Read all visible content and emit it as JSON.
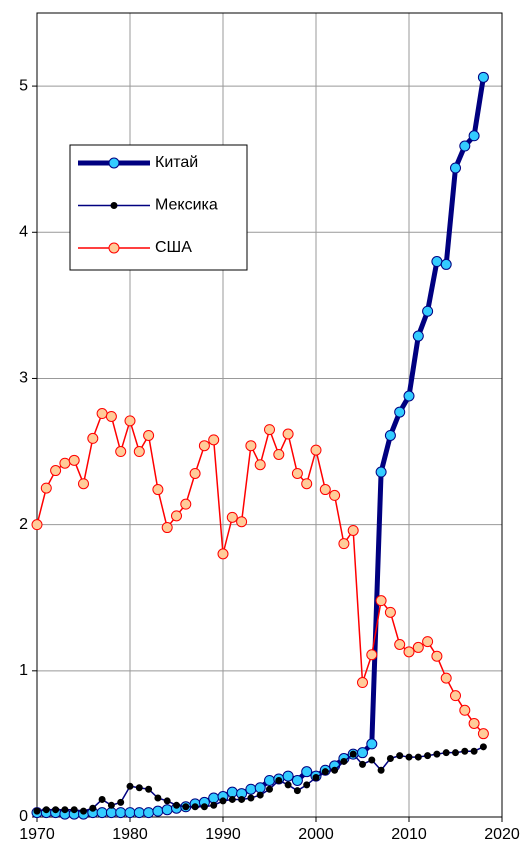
{
  "chart_data": {
    "type": "line",
    "x": [
      1970,
      1971,
      1972,
      1973,
      1974,
      1975,
      1976,
      1977,
      1978,
      1979,
      1980,
      1981,
      1982,
      1983,
      1984,
      1985,
      1986,
      1987,
      1988,
      1989,
      1990,
      1991,
      1992,
      1993,
      1994,
      1995,
      1996,
      1997,
      1998,
      1999,
      2000,
      2001,
      2002,
      2003,
      2004,
      2005,
      2006,
      2007,
      2008,
      2009,
      2010,
      2011,
      2012,
      2013,
      2014,
      2015,
      2016,
      2017,
      2018
    ],
    "series": [
      {
        "name": "Китай",
        "color": "#000080",
        "marker_color": "#33ccff",
        "line_width": 5,
        "marker_size": 5,
        "values": [
          0.03,
          0.03,
          0.03,
          0.02,
          0.02,
          0.02,
          0.03,
          0.03,
          0.03,
          0.03,
          0.03,
          0.03,
          0.03,
          0.04,
          0.05,
          0.06,
          0.07,
          0.09,
          0.1,
          0.13,
          0.14,
          0.17,
          0.16,
          0.19,
          0.2,
          0.25,
          0.26,
          0.28,
          0.25,
          0.31,
          0.28,
          0.32,
          0.35,
          0.4,
          0.43,
          0.44,
          0.5,
          2.36,
          2.61,
          2.77,
          2.88,
          3.29,
          3.46,
          3.8,
          3.78,
          4.44,
          4.59,
          4.66,
          5.06
        ]
      },
      {
        "name": "Мексика",
        "color": "#000080",
        "marker_color": "#000000",
        "line_width": 1.5,
        "marker_size": 3,
        "values": [
          0.04,
          0.05,
          0.05,
          0.05,
          0.05,
          0.04,
          0.06,
          0.12,
          0.08,
          0.1,
          0.21,
          0.2,
          0.19,
          0.13,
          0.11,
          0.08,
          0.07,
          0.07,
          0.07,
          0.08,
          0.11,
          0.12,
          0.12,
          0.13,
          0.15,
          0.19,
          0.25,
          0.22,
          0.18,
          0.22,
          0.27,
          0.31,
          0.32,
          0.38,
          0.43,
          0.36,
          0.39,
          0.32,
          0.4,
          0.42,
          0.41,
          0.41,
          0.42,
          0.43,
          0.44,
          0.44,
          0.45,
          0.45,
          0.48
        ]
      },
      {
        "name": "США",
        "color": "#ff0000",
        "marker_color": "#ffcc99",
        "line_width": 1.5,
        "marker_size": 5,
        "values": [
          2.0,
          2.25,
          2.37,
          2.42,
          2.44,
          2.28,
          2.59,
          2.76,
          2.74,
          2.5,
          2.71,
          2.5,
          2.61,
          2.24,
          1.98,
          2.06,
          2.14,
          2.35,
          2.54,
          2.58,
          1.8,
          2.05,
          2.02,
          2.54,
          2.41,
          2.65,
          2.48,
          2.62,
          2.35,
          2.28,
          2.51,
          2.24,
          2.2,
          1.87,
          1.96,
          0.92,
          1.11,
          1.48,
          1.4,
          1.18,
          1.13,
          1.16,
          1.2,
          1.1,
          0.95,
          0.83,
          0.73,
          0.64,
          0.57
        ]
      }
    ],
    "xlim": [
      1970,
      2020
    ],
    "xticks": [
      1970,
      1980,
      1990,
      2000,
      2010,
      2020
    ],
    "ylim": [
      0,
      5.5
    ],
    "yticks": [
      0,
      1,
      2,
      3,
      4,
      5
    ],
    "grid": true
  }
}
